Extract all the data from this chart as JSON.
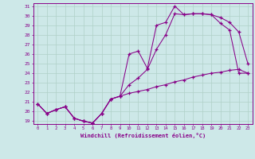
{
  "xlabel": "Windchill (Refroidissement éolien,°C)",
  "bg_color": "#cde8e8",
  "grid_color": "#b0d0c8",
  "line_color": "#880088",
  "xlim": [
    -0.5,
    23.5
  ],
  "ylim": [
    18.7,
    31.3
  ],
  "xticks": [
    0,
    1,
    2,
    3,
    4,
    5,
    6,
    7,
    8,
    9,
    10,
    11,
    12,
    13,
    14,
    15,
    16,
    17,
    18,
    19,
    20,
    21,
    22,
    23
  ],
  "yticks": [
    19,
    20,
    21,
    22,
    23,
    24,
    25,
    26,
    27,
    28,
    29,
    30,
    31
  ],
  "line1_x": [
    0,
    1,
    2,
    3,
    4,
    5,
    6,
    7,
    8,
    9,
    10,
    11,
    12,
    13,
    14,
    15,
    16,
    17,
    18,
    19,
    20,
    21,
    22,
    23
  ],
  "line1_y": [
    20.8,
    19.8,
    20.2,
    20.5,
    19.3,
    19.0,
    18.8,
    19.8,
    21.3,
    21.6,
    26.0,
    26.3,
    24.5,
    29.0,
    29.3,
    31.0,
    30.1,
    30.2,
    30.2,
    30.1,
    29.8,
    29.3,
    28.3,
    25.0
  ],
  "line2_x": [
    0,
    1,
    2,
    3,
    4,
    5,
    6,
    7,
    8,
    9,
    10,
    11,
    12,
    13,
    14,
    15,
    16,
    17,
    18,
    19,
    20,
    21,
    22,
    23
  ],
  "line2_y": [
    20.8,
    19.8,
    20.2,
    20.5,
    19.3,
    19.0,
    18.8,
    19.8,
    21.3,
    21.6,
    22.8,
    23.5,
    24.4,
    26.5,
    28.0,
    30.2,
    30.1,
    30.2,
    30.2,
    30.1,
    29.2,
    28.5,
    24.0,
    24.0
  ],
  "line3_x": [
    0,
    1,
    2,
    3,
    4,
    5,
    6,
    7,
    8,
    9,
    10,
    11,
    12,
    13,
    14,
    15,
    16,
    17,
    18,
    19,
    20,
    21,
    22,
    23
  ],
  "line3_y": [
    20.8,
    19.8,
    20.2,
    20.5,
    19.3,
    19.0,
    18.8,
    19.8,
    21.3,
    21.6,
    21.9,
    22.1,
    22.3,
    22.6,
    22.8,
    23.1,
    23.3,
    23.6,
    23.8,
    24.0,
    24.1,
    24.3,
    24.4,
    24.0
  ]
}
